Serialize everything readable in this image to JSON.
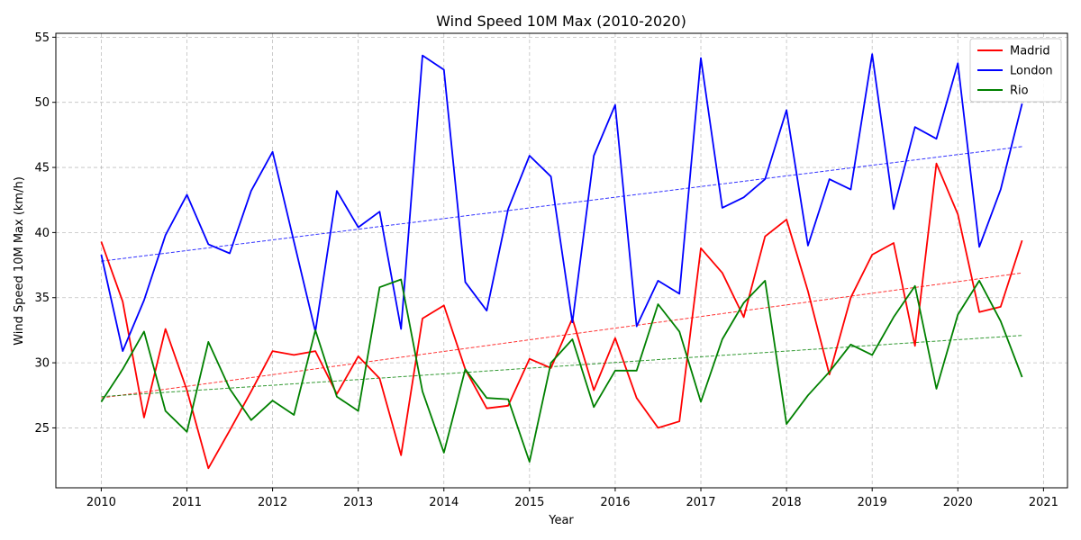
{
  "chart_data": {
    "type": "line",
    "title": "Wind Speed 10M Max (2010-2020)",
    "xlabel": "Year",
    "ylabel": "Wind Speed 10M Max (km/h)",
    "xlim": [
      2009.47,
      2021.28
    ],
    "ylim": [
      20.4,
      55.3
    ],
    "xticks": [
      2010,
      2011,
      2012,
      2013,
      2014,
      2015,
      2016,
      2017,
      2018,
      2019,
      2020,
      2021
    ],
    "yticks": [
      25,
      30,
      35,
      40,
      45,
      50,
      55
    ],
    "grid": true,
    "legend_position": "top-right",
    "x": [
      2010.0,
      2010.25,
      2010.5,
      2010.75,
      2011.0,
      2011.25,
      2011.5,
      2011.75,
      2012.0,
      2012.25,
      2012.5,
      2012.75,
      2013.0,
      2013.25,
      2013.5,
      2013.75,
      2014.0,
      2014.25,
      2014.5,
      2014.75,
      2015.0,
      2015.25,
      2015.5,
      2015.75,
      2016.0,
      2016.25,
      2016.5,
      2016.75,
      2017.0,
      2017.25,
      2017.5,
      2017.75,
      2018.0,
      2018.25,
      2018.5,
      2018.75,
      2019.0,
      2019.25,
      2019.5,
      2019.75,
      2020.0,
      2020.25,
      2020.5,
      2020.75
    ],
    "series": [
      {
        "name": "Madrid",
        "color": "#ff0000",
        "values": [
          39.3,
          34.7,
          25.8,
          32.6,
          27.9,
          21.9,
          24.8,
          27.8,
          30.9,
          30.6,
          30.9,
          27.6,
          30.5,
          28.8,
          22.9,
          33.4,
          34.4,
          29.5,
          26.5,
          26.7,
          30.3,
          29.6,
          33.4,
          27.9,
          31.9,
          27.3,
          25.0,
          25.5,
          38.8,
          36.9,
          33.5,
          39.7,
          41.0,
          35.5,
          29.1,
          35.0,
          38.3,
          39.2,
          31.3,
          45.3,
          41.4,
          33.9,
          34.3,
          39.4
        ],
        "trend": [
          27.3,
          36.9
        ]
      },
      {
        "name": "London",
        "color": "#0000ff",
        "values": [
          38.3,
          30.9,
          34.8,
          39.8,
          42.9,
          39.1,
          38.4,
          43.2,
          46.2,
          39.3,
          32.4,
          43.2,
          40.4,
          41.6,
          32.6,
          53.6,
          52.5,
          36.2,
          34.0,
          41.8,
          45.9,
          44.3,
          33.1,
          45.9,
          49.8,
          32.8,
          36.3,
          35.3,
          53.4,
          41.9,
          42.7,
          44.1,
          49.4,
          39.0,
          44.1,
          43.3,
          53.7,
          41.8,
          48.1,
          47.2,
          53.0,
          38.9,
          43.3,
          49.9
        ],
        "trend": [
          37.8,
          46.6
        ]
      },
      {
        "name": "Rio",
        "color": "#008000",
        "values": [
          27.0,
          29.5,
          32.4,
          26.3,
          24.7,
          31.6,
          28.0,
          25.6,
          27.1,
          26.0,
          32.5,
          27.4,
          26.3,
          35.8,
          36.4,
          27.8,
          23.1,
          29.5,
          27.3,
          27.2,
          22.4,
          30.0,
          31.8,
          26.6,
          29.4,
          29.4,
          34.5,
          32.4,
          27.0,
          31.8,
          34.6,
          36.3,
          25.3,
          27.5,
          29.3,
          31.4,
          30.6,
          33.5,
          35.9,
          28.0,
          33.7,
          36.3,
          33.2,
          28.9
        ],
        "trend": [
          27.4,
          32.1
        ]
      }
    ]
  }
}
